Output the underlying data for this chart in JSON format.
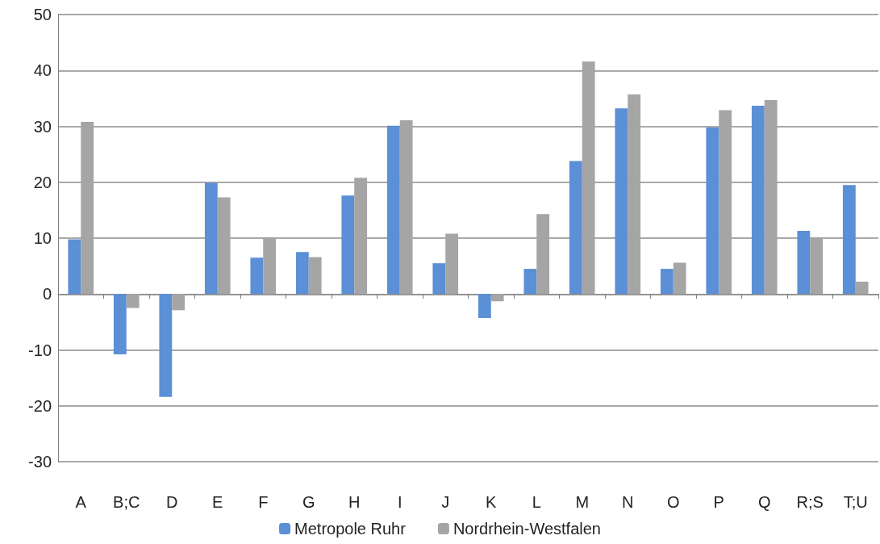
{
  "chart_data": {
    "type": "bar",
    "categories": [
      "A",
      "B;C",
      "D",
      "E",
      "F",
      "G",
      "H",
      "I",
      "J",
      "K",
      "L",
      "M",
      "N",
      "O",
      "P",
      "Q",
      "R;S",
      "T;U"
    ],
    "series": [
      {
        "name": "Metropole Ruhr",
        "color": "#5b8fd6",
        "values": [
          9.8,
          -10.8,
          -18.4,
          19.9,
          6.5,
          7.5,
          17.6,
          30.1,
          5.5,
          -4.3,
          4.5,
          23.8,
          33.2,
          4.5,
          29.8,
          33.7,
          11.3,
          19.5
        ]
      },
      {
        "name": "Nordrhein-Westfalen",
        "color": "#a5a5a5",
        "values": [
          30.8,
          -2.5,
          -2.9,
          17.3,
          10.1,
          6.6,
          20.8,
          31.1,
          10.8,
          -1.3,
          14.3,
          41.6,
          35.7,
          5.6,
          32.9,
          34.7,
          10.1,
          2.2
        ]
      }
    ],
    "ylim": [
      -30,
      50
    ],
    "yticks": [
      -30,
      -20,
      -10,
      0,
      10,
      20,
      30,
      40,
      50
    ],
    "grid": "y",
    "legend": "bottom"
  }
}
